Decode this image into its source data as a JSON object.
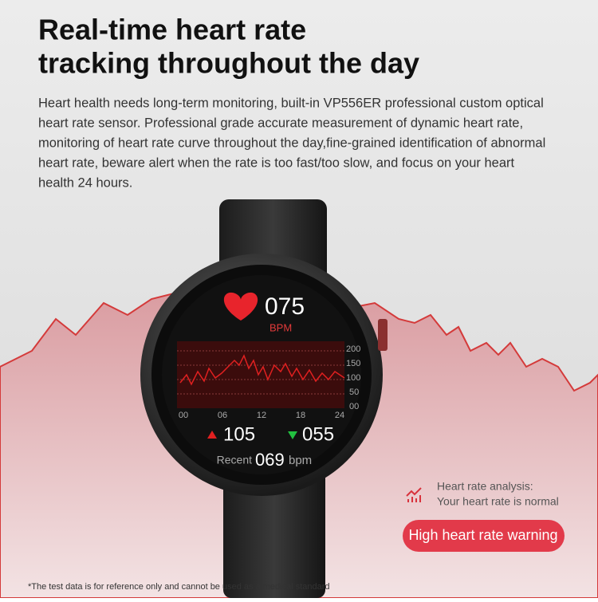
{
  "header": {
    "title_lines": [
      "Real-time heart rate",
      "tracking throughout the day"
    ],
    "description_lines": [
      "Heart health needs long-term monitoring, built-in VP556ER professional custom optical",
      "heart rate sensor. Professional grade accurate measurement of dynamic heart rate,",
      "monitoring of heart rate curve throughout the day,fine-grained identification of abnormal",
      "heart rate, beware alert when the rate is too fast/too slow, and focus on your heart",
      "health 24 hours."
    ]
  },
  "watch": {
    "heart_rate": "075",
    "unit": "BPM",
    "chart": {
      "y_labels": [
        "200",
        "150",
        "100",
        "50",
        "00"
      ],
      "x_labels": [
        "00",
        "06",
        "12",
        "18",
        "24"
      ]
    },
    "max": "105",
    "min": "055",
    "recent_label": "Recent",
    "recent_value": "069",
    "recent_unit": "bpm"
  },
  "analysis": {
    "title": "Heart rate analysis:",
    "status": "Your heart rate is normal"
  },
  "warning_button": "High heart rate warning",
  "footnote": "*The test data is for reference only and cannot be used as a medical standard"
}
